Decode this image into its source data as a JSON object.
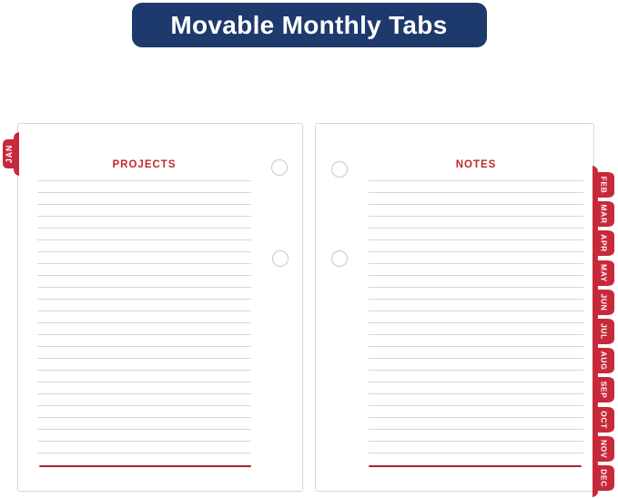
{
  "banner": {
    "title": "Movable Monthly Tabs"
  },
  "colors": {
    "banner_bg": "#1e3a6c",
    "tab_red": "#c8293a",
    "header_red": "#c1272d",
    "rule_line": "#d9d6d2",
    "bottom_rule_red": "#a82330",
    "page_border": "#d8d8d8",
    "page_bg": "#ffffff",
    "hole_border": "#c9c9c9"
  },
  "left_page": {
    "title": "PROJECTS",
    "tab_label": "JAN",
    "rule_line_count": 24,
    "hole_count": 2
  },
  "right_page": {
    "title": "NOTES",
    "tab_labels": [
      "FEB",
      "MAR",
      "APR",
      "MAY",
      "JUN",
      "JUL",
      "AUG",
      "SEP",
      "OCT",
      "NOV",
      "DEC"
    ],
    "rule_line_count": 24,
    "hole_count": 2
  }
}
